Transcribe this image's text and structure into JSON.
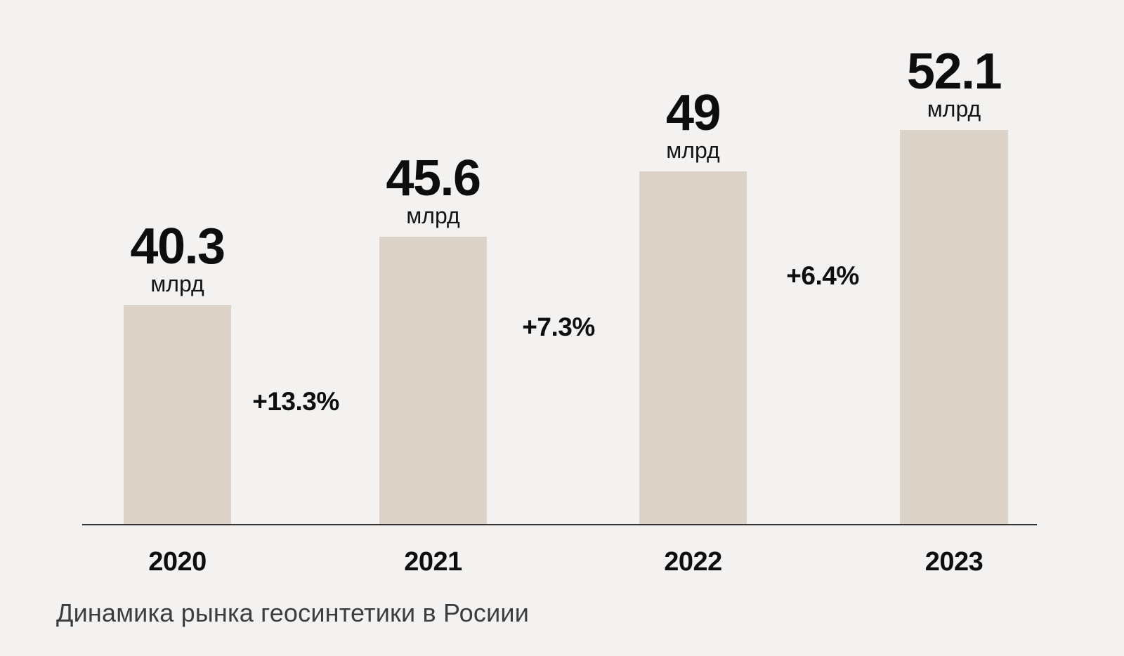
{
  "title": "Динамика рынка геосинтетики в Росиии",
  "colors": {
    "background": "#f3f2f1",
    "bar": "#dbd3c7",
    "axis": "#343434",
    "text": "#0d0d0d",
    "title_text": "#3d3d3d"
  },
  "chart_data": {
    "type": "bar",
    "title": "Динамика рынка геосинтетики в Росиии",
    "categories": [
      "2020",
      "2021",
      "2022",
      "2023"
    ],
    "values": [
      40.3,
      45.6,
      49,
      52.1
    ],
    "value_labels": [
      "40.3",
      "45.6",
      "49",
      "52.1"
    ],
    "unit": "млрд",
    "growth_labels": [
      "+13.3%",
      "+7.3%",
      "+6.4%"
    ],
    "xlabel": "",
    "ylabel": "",
    "legend": "none",
    "grid": "off",
    "axis": "x-only"
  }
}
